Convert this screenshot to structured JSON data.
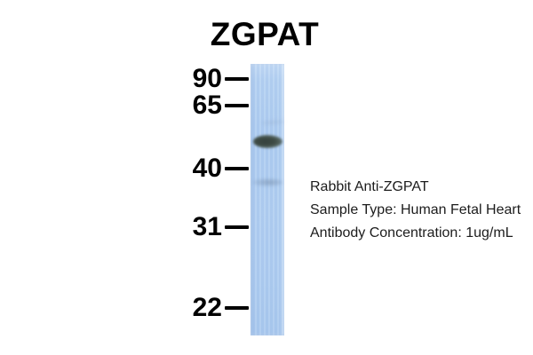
{
  "figure": {
    "title": "ZGPAT",
    "type": "western-blot",
    "annotation_lines": [
      "Rabbit Anti-ZGPAT",
      "Sample Type: Human Fetal Heart",
      "Antibody Concentration: 1ug/mL"
    ]
  },
  "ladder": {
    "markers": [
      {
        "label": "90"
      },
      {
        "label": "65"
      },
      {
        "label": "40"
      },
      {
        "label": "31"
      },
      {
        "label": "22"
      }
    ]
  },
  "blot": {
    "lanes": 1,
    "bands": [
      {
        "name": "main-band",
        "intensity": "strong",
        "position": "between 40 and 65 markers, closer to midpoint (~45-50)"
      },
      {
        "name": "faint-band",
        "intensity": "very faint",
        "position": "just below 40 marker (~37-38)"
      }
    ]
  },
  "colors": {
    "background": "#ffffff",
    "lane_base": "#afcdf1",
    "band_dark": "#3d4a44",
    "title_text": "#000000",
    "annotation_text": "#1c1c1c",
    "marker_text": "#000000"
  }
}
